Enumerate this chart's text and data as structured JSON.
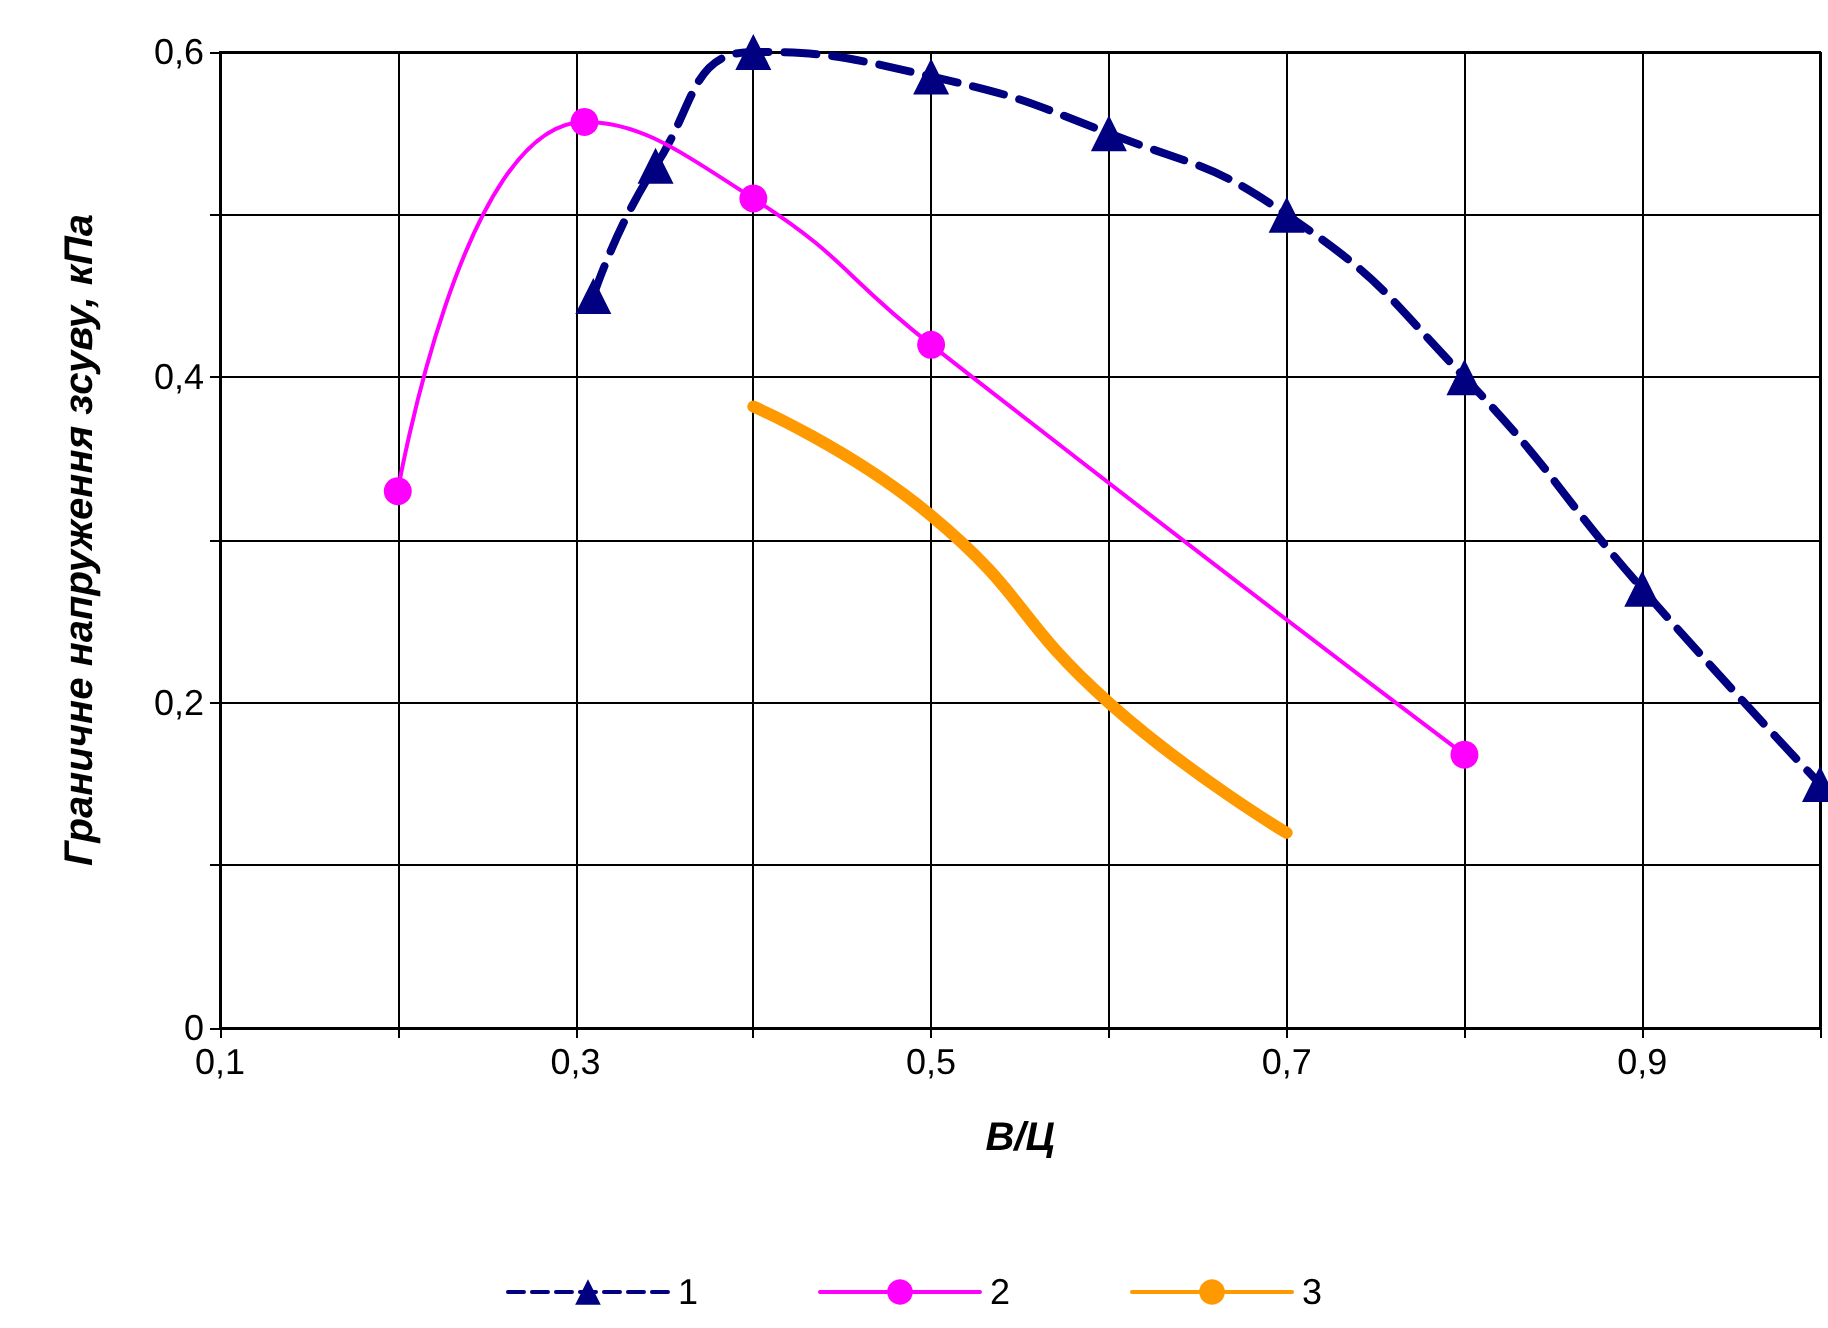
{
  "chart_data": {
    "type": "line",
    "xlabel": "В/Ц",
    "ylabel": "Граничне напруження зсуву, кПа",
    "xlim": [
      0.1,
      1.0
    ],
    "ylim": [
      0,
      0.6
    ],
    "xticks": [
      {
        "value": 0.1,
        "label": "0,1"
      },
      {
        "value": 0.2,
        "label": null
      },
      {
        "value": 0.3,
        "label": "0,3"
      },
      {
        "value": 0.4,
        "label": null
      },
      {
        "value": 0.5,
        "label": "0,5"
      },
      {
        "value": 0.6,
        "label": null
      },
      {
        "value": 0.7,
        "label": "0,7"
      },
      {
        "value": 0.8,
        "label": null
      },
      {
        "value": 0.9,
        "label": "0,9"
      },
      {
        "value": 1.0,
        "label": null
      }
    ],
    "yticks": [
      0,
      {
        "value": 0.1,
        "label": null
      },
      {
        "value": 0.2,
        "label": "0,2"
      },
      {
        "value": 0.3,
        "label": null
      },
      {
        "value": 0.4,
        "label": "0,4"
      },
      {
        "value": 0.5,
        "label": null
      },
      {
        "value": 0.6,
        "label": "0,6"
      }
    ],
    "grid": true,
    "legend": "bottom",
    "series": [
      {
        "name": "1",
        "color": "#000080",
        "marker": "triangle",
        "line_style": "dashed",
        "x": [
          0.31,
          0.345,
          0.4,
          0.5,
          0.6,
          0.7,
          0.8,
          0.9,
          1.0
        ],
        "values": [
          0.45,
          0.53,
          0.6,
          0.585,
          0.55,
          0.5,
          0.4,
          0.27,
          0.15
        ]
      },
      {
        "name": "2",
        "color": "#ff00ff",
        "marker": "circle",
        "line_style": "solid",
        "x": [
          0.2,
          0.305,
          0.4,
          0.5,
          0.8
        ],
        "values": [
          0.33,
          0.557,
          0.51,
          0.42,
          0.168
        ]
      },
      {
        "name": "3",
        "color": "#ff9900",
        "marker": "none",
        "line_style": "solid",
        "x": [
          0.4,
          0.5,
          0.6,
          0.7
        ],
        "values": [
          0.382,
          0.315,
          0.2,
          0.12
        ]
      }
    ]
  }
}
